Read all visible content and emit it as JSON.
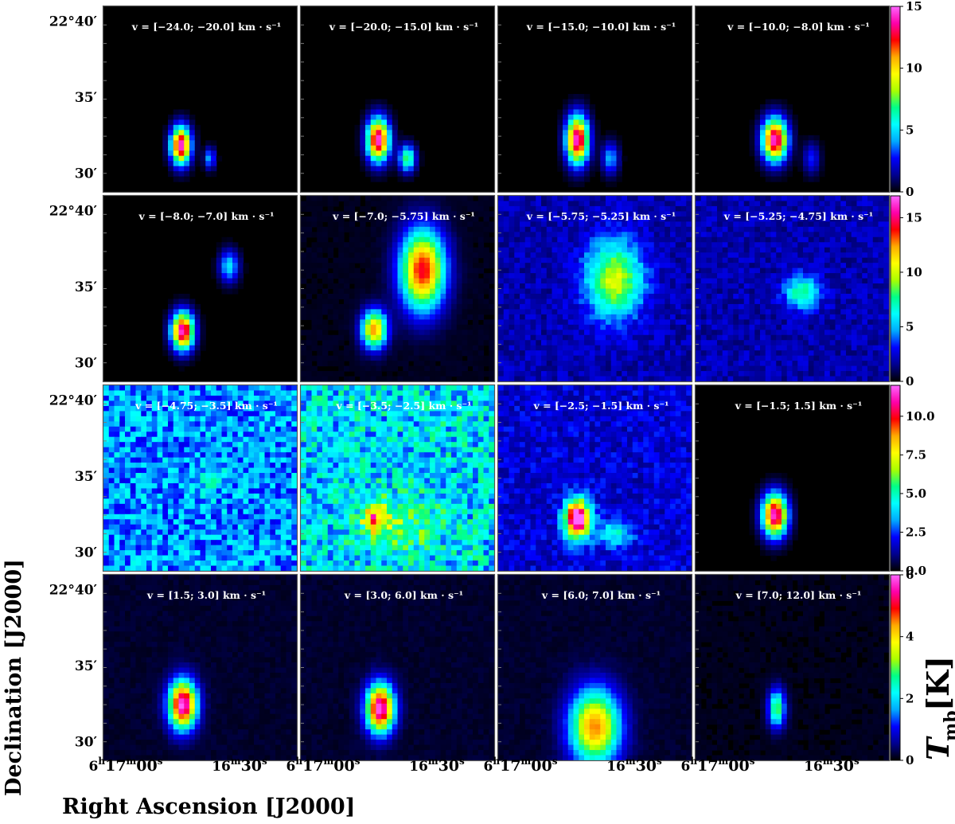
{
  "figure": {
    "xlabel": "Right Ascension [J2000]",
    "ylabel": "Declination [J2000]",
    "colorbar_label_main": "T",
    "colorbar_label_sub": "mb",
    "colorbar_label_unit": "[K]",
    "dec_ticks": [
      "22°40′",
      "35′",
      "30′"
    ],
    "ra_ticks_left": "6h17m00s",
    "ra_ticks_right": "16m30s"
  },
  "colors": {
    "colormap": [
      "#000000",
      "#00008f",
      "#0000ff",
      "#00aaff",
      "#00ffff",
      "#00ff88",
      "#aaff00",
      "#ffff00",
      "#ffaa00",
      "#ff0000",
      "#ff00aa",
      "#ff66ff"
    ]
  },
  "rows": [
    {
      "colorbar": {
        "min": 0,
        "max": 15,
        "ticks": [
          "0",
          "5",
          "10",
          "15"
        ]
      }
    },
    {
      "colorbar": {
        "min": 0,
        "max": 17,
        "ticks": [
          "0",
          "5",
          "10",
          "15"
        ]
      }
    },
    {
      "colorbar": {
        "min": 0,
        "max": 12,
        "ticks": [
          "0.0",
          "2.5",
          "5.0",
          "7.5",
          "10.0"
        ]
      }
    },
    {
      "colorbar": {
        "min": 0,
        "max": 6,
        "ticks": [
          "0",
          "2",
          "4",
          "6"
        ]
      }
    }
  ],
  "chart_data": {
    "type": "heatmap",
    "description_kind": "channel maps",
    "xlabel": "Right Ascension [J2000]",
    "ylabel": "Declination [J2000]",
    "colorbar_label": "T_mb [K]",
    "panels": [
      {
        "label": "v = [−24.0; −20.0] km · s⁻¹",
        "peak": 4,
        "bg": 0.0,
        "blobs": [
          [
            0.4,
            0.75,
            0.035,
            0.07,
            1.0
          ],
          [
            0.55,
            0.82,
            0.02,
            0.04,
            0.3
          ]
        ]
      },
      {
        "label": "v = [−20.0; −15.0] km · s⁻¹",
        "peak": 5,
        "bg": 0.0,
        "blobs": [
          [
            0.4,
            0.72,
            0.04,
            0.08,
            1.0
          ],
          [
            0.55,
            0.82,
            0.03,
            0.05,
            0.5
          ]
        ]
      },
      {
        "label": "v = [−15.0; −10.0] km · s⁻¹",
        "peak": 8,
        "bg": 0.0,
        "blobs": [
          [
            0.41,
            0.72,
            0.04,
            0.09,
            1.0
          ],
          [
            0.58,
            0.82,
            0.03,
            0.06,
            0.3
          ]
        ]
      },
      {
        "label": "v = [−10.0; −8.0] km · s⁻¹",
        "peak": 15,
        "bg": 0.0,
        "blobs": [
          [
            0.41,
            0.72,
            0.045,
            0.08,
            1.0
          ],
          [
            0.6,
            0.82,
            0.03,
            0.06,
            0.2
          ]
        ]
      },
      {
        "label": "v = [−8.0; −7.0] km · s⁻¹",
        "peak": 16,
        "bg": 0.0,
        "blobs": [
          [
            0.41,
            0.73,
            0.04,
            0.07,
            1.0
          ],
          [
            0.65,
            0.38,
            0.035,
            0.06,
            0.35
          ]
        ]
      },
      {
        "label": "v = [−7.0; −5.75] km · s⁻¹",
        "peak": 13,
        "bg": 0.02,
        "blobs": [
          [
            0.38,
            0.72,
            0.045,
            0.07,
            0.75
          ],
          [
            0.63,
            0.4,
            0.08,
            0.15,
            0.85
          ]
        ]
      },
      {
        "label": "v = [−5.75; −5.25] km · s⁻¹",
        "peak": 6,
        "bg": 0.12,
        "blobs": [
          [
            0.6,
            0.45,
            0.1,
            0.14,
            0.5
          ]
        ]
      },
      {
        "label": "v = [−5.25; −4.75] km · s⁻¹",
        "peak": 4,
        "bg": 0.12,
        "blobs": [
          [
            0.55,
            0.52,
            0.06,
            0.06,
            0.35
          ]
        ]
      },
      {
        "label": "v = [−4.75; −3.5] km · s⁻¹",
        "peak": 3,
        "bg": 0.28,
        "blobs": [
          [
            0.55,
            0.5,
            0.08,
            0.05,
            0.1
          ]
        ]
      },
      {
        "label": "v = [−3.5; −2.5] km · s⁻¹",
        "peak": 5,
        "bg": 0.35,
        "blobs": [
          [
            0.38,
            0.72,
            0.04,
            0.05,
            0.4
          ],
          [
            0.5,
            0.75,
            0.15,
            0.1,
            0.15
          ]
        ]
      },
      {
        "label": "v = [−2.5; −1.5] km · s⁻¹",
        "peak": 12,
        "bg": 0.15,
        "blobs": [
          [
            0.41,
            0.72,
            0.045,
            0.07,
            1.0
          ],
          [
            0.6,
            0.8,
            0.06,
            0.05,
            0.25
          ]
        ]
      },
      {
        "label": "v = [−1.5; 1.5] km · s⁻¹",
        "peak": 11,
        "bg": 0.0,
        "blobs": [
          [
            0.41,
            0.7,
            0.045,
            0.08,
            1.0
          ]
        ]
      },
      {
        "label": "v = [1.5; 3.0] km · s⁻¹",
        "peak": 6,
        "bg": 0.03,
        "blobs": [
          [
            0.41,
            0.7,
            0.05,
            0.09,
            1.0
          ]
        ]
      },
      {
        "label": "v = [3.0; 6.0] km · s⁻¹",
        "peak": 3.5,
        "bg": 0.03,
        "blobs": [
          [
            0.41,
            0.72,
            0.05,
            0.09,
            1.0
          ]
        ]
      },
      {
        "label": "v = [6.0; 7.0] km · s⁻¹",
        "peak": 2,
        "bg": 0.03,
        "blobs": [
          [
            0.5,
            0.82,
            0.09,
            0.14,
            0.75
          ]
        ]
      },
      {
        "label": "v = [7.0; 12.0] km · s⁻¹",
        "peak": 1,
        "bg": 0.02,
        "blobs": [
          [
            0.42,
            0.72,
            0.03,
            0.07,
            0.5
          ]
        ]
      }
    ]
  }
}
